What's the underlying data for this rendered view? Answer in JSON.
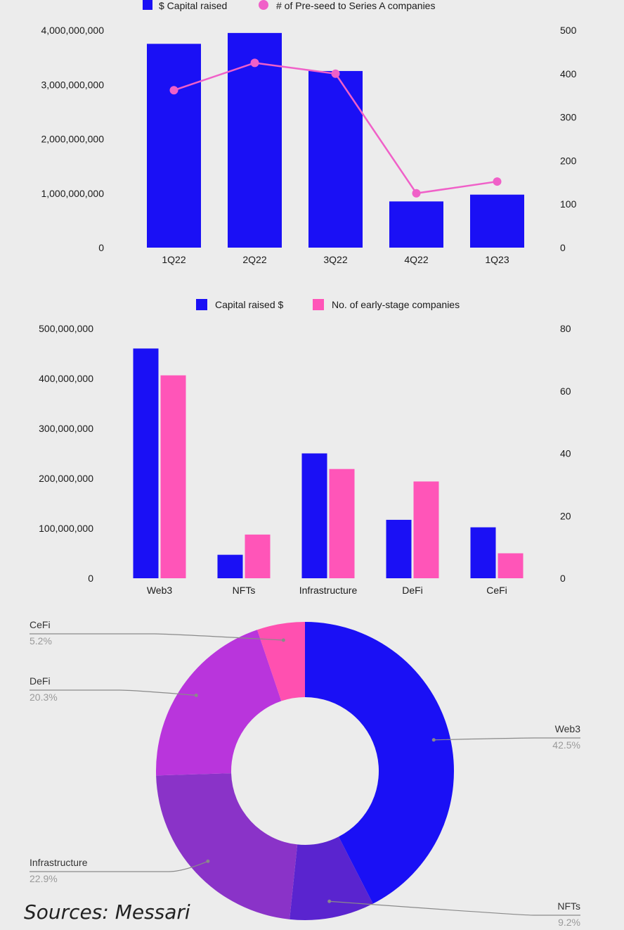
{
  "chart_data": [
    {
      "type": "bar+line",
      "title": "",
      "legend": {
        "placement": "top",
        "entries": [
          "$ Capital raised",
          "# of Pre-seed to Series A companies"
        ]
      },
      "categories": [
        "1Q22",
        "2Q22",
        "3Q22",
        "4Q22",
        "1Q23"
      ],
      "series": [
        {
          "name": "$ Capital raised",
          "kind": "bar",
          "axis": "left",
          "color": "#1a10f5",
          "values": [
            3750000000,
            3950000000,
            3250000000,
            850000000,
            975000000
          ]
        },
        {
          "name": "# of Pre-seed to Series A companies",
          "kind": "line",
          "axis": "right",
          "color": "#f060c8",
          "values": [
            362,
            425,
            400,
            125,
            152
          ]
        }
      ],
      "left_axis": {
        "ylim": [
          0,
          4000000000
        ],
        "ticks": [
          "4,000,000,000",
          "3,000,000,000",
          "2,000,000,000",
          "1,000,000,000",
          "0"
        ]
      },
      "right_axis": {
        "ylim": [
          0,
          500
        ],
        "ticks": [
          "500",
          "400",
          "300",
          "200",
          "100",
          "0"
        ]
      },
      "grid": false
    },
    {
      "type": "bar",
      "title": "",
      "legend": {
        "placement": "top",
        "entries": [
          "Capital raised $",
          "No. of early-stage companies"
        ]
      },
      "categories": [
        "Web3",
        "NFTs",
        "Infrastructure",
        "DeFi",
        "CeFi"
      ],
      "series": [
        {
          "name": "Capital raised $",
          "axis": "left",
          "color": "#1a10f5",
          "values": [
            460000000,
            47000000,
            250000000,
            117000000,
            102000000
          ]
        },
        {
          "name": "No. of early-stage companies",
          "axis": "right",
          "color": "#ff55b8",
          "values": [
            65,
            14,
            35,
            31,
            8
          ]
        }
      ],
      "left_axis": {
        "ylim": [
          0,
          500000000
        ],
        "ticks": [
          "500,000,000",
          "400,000,000",
          "300,000,000",
          "200,000,000",
          "100,000,000",
          "0"
        ]
      },
      "right_axis": {
        "ylim": [
          0,
          80
        ],
        "ticks": [
          "80",
          "60",
          "40",
          "20",
          "0"
        ]
      },
      "grid": false
    },
    {
      "type": "pie",
      "subtype": "donut",
      "slices": [
        {
          "label": "Web3",
          "pct_label": "42.5%",
          "value": 42.5,
          "color": "#1a10f5"
        },
        {
          "label": "NFTs",
          "pct_label": "9.2%",
          "value": 9.2,
          "color": "#5a24cf"
        },
        {
          "label": "Infrastructure",
          "pct_label": "22.9%",
          "value": 22.9,
          "color": "#8a33c8"
        },
        {
          "label": "DeFi",
          "pct_label": "20.3%",
          "value": 20.3,
          "color": "#b935dc"
        },
        {
          "label": "CeFi",
          "pct_label": "5.2%",
          "value": 5.2,
          "color": "#ff50b0"
        }
      ]
    }
  ],
  "source_text": "Sources: Messari"
}
